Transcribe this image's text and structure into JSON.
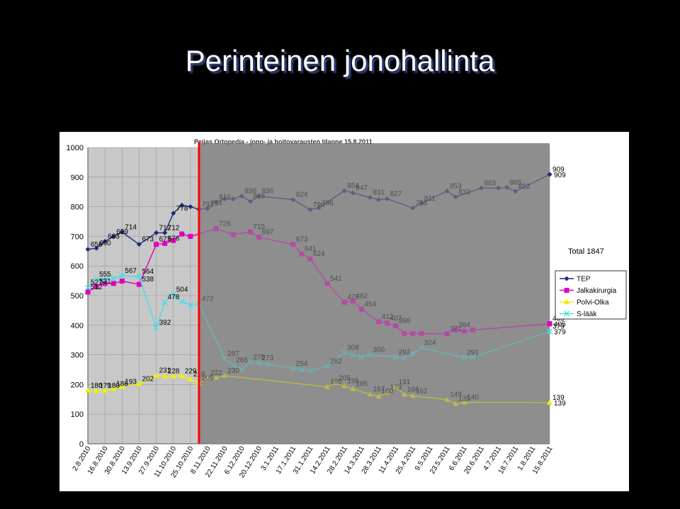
{
  "slide": {
    "title": "Perinteinen jonohallinta"
  },
  "chart_data": {
    "type": "line",
    "title": "Peijas Ortopedia - jono- ja hoitovarausten tilanne 15.8.2011",
    "ylim": [
      0,
      1000
    ],
    "yticks": [
      0,
      100,
      200,
      300,
      400,
      500,
      600,
      700,
      800,
      900,
      1000
    ],
    "grid": true,
    "legend_position": "right",
    "total_label": "Total 1847",
    "x_dates": [
      "2.8.2010",
      "9.8.2010",
      "16.8.2010",
      "23.8.2010",
      "30.8.2010",
      "6.9.2010",
      "13.9.2010",
      "20.9.2010",
      "27.9.2010",
      "4.10.2010",
      "11.10.2010",
      "18.10.2010",
      "25.10.2010",
      "1.11.2010",
      "8.11.2010",
      "15.11.2010",
      "22.11.2010",
      "29.11.2010",
      "6.12.2010",
      "13.12.2010",
      "20.12.2010",
      "27.12.2010",
      "3.1.2011",
      "10.1.2011",
      "17.1.2011",
      "24.1.2011",
      "31.1.2011",
      "7.2.2011",
      "14.2.2011",
      "21.2.2011",
      "28.2.2011",
      "7.3.2011",
      "14.3.2011",
      "21.3.2011",
      "28.3.2011",
      "4.4.2011",
      "11.4.2011",
      "18.4.2011",
      "25.4.2011",
      "2.5.2011",
      "9.5.2011",
      "16.5.2011",
      "23.5.2011",
      "30.5.2011",
      "6.6.2011",
      "13.6.2011",
      "20.6.2011",
      "27.6.2011",
      "4.7.2011",
      "11.7.2011",
      "18.7.2011",
      "25.7.2011",
      "1.8.2011",
      "8.8.2011",
      "15.8.2011"
    ],
    "x_tick_labels": [
      "2.8.2010",
      "16.8.2010",
      "30.8.2010",
      "13.9.2010",
      "27.9.2010",
      "11.10.2010",
      "25.10.2010",
      "8.11.2010",
      "22.11.2010",
      "6.12.2010",
      "20.12.2010",
      "3.1.2011",
      "17.1.2011",
      "31.1.2011",
      "14.2.2011",
      "28.2.2011",
      "14.3.2011",
      "28.3.2011",
      "11.4.2011",
      "25.4.2011",
      "9.5.2011",
      "23.5.2011",
      "6.6.2011",
      "20.6.2011",
      "4.7.2011",
      "18.7.2011",
      "1.8.2011",
      "15.8.2011"
    ],
    "series": [
      {
        "name": "TEP",
        "color": "#1f2a7a",
        "marker": "diamond",
        "labels_from_index": 0,
        "label_to_index": 10,
        "values": [
          656,
          660,
          683,
          699,
          714,
          null,
          673,
          null,
          712,
          712,
          778,
          805,
          800,
          791,
          794,
          816,
          826,
          826,
          836,
          818,
          836,
          null,
          null,
          null,
          824,
          null,
          790,
          796,
          null,
          null,
          854,
          847,
          null,
          831,
          824,
          827,
          null,
          null,
          796,
          811,
          null,
          null,
          853,
          833,
          null,
          null,
          863,
          null,
          863,
          865,
          852,
          null,
          null,
          null,
          909
        ]
      },
      {
        "name": "Jalkakirurgia",
        "color": "#e000c0",
        "marker": "square",
        "labels_from_index": 0,
        "label_to_index": 10,
        "values": [
          512,
          531,
          541,
          541,
          549,
          null,
          538,
          null,
          673,
          676,
          686,
          708,
          700,
          null,
          null,
          726,
          null,
          706,
          null,
          715,
          697,
          null,
          null,
          null,
          673,
          641,
          624,
          null,
          541,
          null,
          478,
          482,
          454,
          null,
          412,
          407,
          398,
          372,
          372,
          372,
          null,
          null,
          371,
          384,
          380,
          384,
          null,
          null,
          null,
          null,
          null,
          null,
          null,
          null,
          405
        ]
      },
      {
        "name": "Polvi-Olka",
        "color": "#f0f000",
        "marker": "triangle",
        "labels_from_index": 0,
        "label_to_index": 10,
        "values": [
          180,
          179,
          180,
          186,
          193,
          null,
          202,
          null,
          231,
          228,
          228,
          229,
          218,
          205,
          222,
          223,
          230,
          null,
          null,
          null,
          null,
          null,
          null,
          null,
          null,
          null,
          null,
          null,
          192,
          205,
          195,
          185,
          null,
          167,
          160,
          173,
          191,
          166,
          162,
          null,
          null,
          null,
          149,
          135,
          140,
          null,
          null,
          null,
          null,
          null,
          null,
          null,
          null,
          null,
          139
        ]
      },
      {
        "name": "S-lääk",
        "color": "#40e0e8",
        "marker": "x",
        "labels_from_index": 0,
        "label_to_index": 10,
        "values": [
          527,
          555,
          555,
          558,
          567,
          null,
          564,
          null,
          392,
          478,
          504,
          480,
          468,
          472,
          null,
          null,
          287,
          265,
          251,
          275,
          273,
          269,
          null,
          null,
          254,
          249,
          246,
          null,
          262,
          null,
          308,
          299,
          293,
          300,
          null,
          null,
          292,
          289,
          305,
          324,
          null,
          null,
          null,
          null,
          291,
          292,
          null,
          null,
          null,
          null,
          null,
          null,
          null,
          null,
          379
        ]
      }
    ],
    "data_labels": [
      {
        "series": 0,
        "i": 0,
        "text": "656"
      },
      {
        "series": 0,
        "i": 1,
        "text": "660"
      },
      {
        "series": 0,
        "i": 2,
        "text": "683"
      },
      {
        "series": 0,
        "i": 3,
        "text": "699"
      },
      {
        "series": 0,
        "i": 4,
        "text": "714"
      },
      {
        "series": 0,
        "i": 6,
        "text": "673"
      },
      {
        "series": 0,
        "i": 8,
        "text": "712"
      },
      {
        "series": 0,
        "i": 9,
        "text": "712"
      },
      {
        "series": 0,
        "i": 10,
        "text": "778"
      },
      {
        "series": 0,
        "i": 13,
        "text": "791"
      },
      {
        "series": 0,
        "i": 14,
        "text": "794"
      },
      {
        "series": 0,
        "i": 15,
        "text": "816"
      },
      {
        "series": 0,
        "i": 18,
        "text": "836"
      },
      {
        "series": 0,
        "i": 19,
        "text": "818"
      },
      {
        "series": 0,
        "i": 20,
        "text": "836"
      },
      {
        "series": 0,
        "i": 24,
        "text": "824"
      },
      {
        "series": 0,
        "i": 26,
        "text": "790"
      },
      {
        "series": 0,
        "i": 27,
        "text": "796"
      },
      {
        "series": 0,
        "i": 30,
        "text": "854"
      },
      {
        "series": 0,
        "i": 31,
        "text": "847"
      },
      {
        "series": 0,
        "i": 33,
        "text": "831"
      },
      {
        "series": 0,
        "i": 35,
        "text": "827"
      },
      {
        "series": 0,
        "i": 38,
        "text": "796"
      },
      {
        "series": 0,
        "i": 39,
        "text": "811"
      },
      {
        "series": 0,
        "i": 42,
        "text": "853"
      },
      {
        "series": 0,
        "i": 43,
        "text": "833"
      },
      {
        "series": 0,
        "i": 46,
        "text": "863"
      },
      {
        "series": 0,
        "i": 49,
        "text": "865"
      },
      {
        "series": 0,
        "i": 50,
        "text": "852"
      },
      {
        "series": 0,
        "i": 54,
        "text": "909"
      },
      {
        "series": 1,
        "i": 0,
        "text": "512"
      },
      {
        "series": 1,
        "i": 1,
        "text": "531"
      },
      {
        "series": 1,
        "i": 6,
        "text": "538"
      },
      {
        "series": 1,
        "i": 8,
        "text": "673"
      },
      {
        "series": 1,
        "i": 9,
        "text": "676"
      },
      {
        "series": 1,
        "i": 15,
        "text": "726"
      },
      {
        "series": 1,
        "i": 19,
        "text": "715"
      },
      {
        "series": 1,
        "i": 20,
        "text": "697"
      },
      {
        "series": 1,
        "i": 24,
        "text": "673"
      },
      {
        "series": 1,
        "i": 25,
        "text": "641"
      },
      {
        "series": 1,
        "i": 26,
        "text": "624"
      },
      {
        "series": 1,
        "i": 28,
        "text": "541"
      },
      {
        "series": 1,
        "i": 30,
        "text": "478"
      },
      {
        "series": 1,
        "i": 31,
        "text": "482"
      },
      {
        "series": 1,
        "i": 32,
        "text": "454"
      },
      {
        "series": 1,
        "i": 34,
        "text": "412"
      },
      {
        "series": 1,
        "i": 35,
        "text": "407"
      },
      {
        "series": 1,
        "i": 36,
        "text": "398"
      },
      {
        "series": 1,
        "i": 42,
        "text": "371"
      },
      {
        "series": 1,
        "i": 43,
        "text": "384"
      },
      {
        "series": 1,
        "i": 54,
        "text": "405"
      },
      {
        "series": 2,
        "i": 0,
        "text": "180"
      },
      {
        "series": 2,
        "i": 1,
        "text": "179"
      },
      {
        "series": 2,
        "i": 2,
        "text": "180"
      },
      {
        "series": 2,
        "i": 3,
        "text": "186"
      },
      {
        "series": 2,
        "i": 4,
        "text": "193"
      },
      {
        "series": 2,
        "i": 6,
        "text": "202"
      },
      {
        "series": 2,
        "i": 8,
        "text": "231"
      },
      {
        "series": 2,
        "i": 9,
        "text": "228"
      },
      {
        "series": 2,
        "i": 11,
        "text": "229"
      },
      {
        "series": 2,
        "i": 12,
        "text": "218"
      },
      {
        "series": 2,
        "i": 13,
        "text": "205"
      },
      {
        "series": 2,
        "i": 14,
        "text": "222"
      },
      {
        "series": 2,
        "i": 16,
        "text": "230"
      },
      {
        "series": 2,
        "i": 28,
        "text": "192"
      },
      {
        "series": 2,
        "i": 29,
        "text": "205"
      },
      {
        "series": 2,
        "i": 30,
        "text": "195"
      },
      {
        "series": 2,
        "i": 31,
        "text": "185"
      },
      {
        "series": 2,
        "i": 33,
        "text": "167"
      },
      {
        "series": 2,
        "i": 34,
        "text": "160"
      },
      {
        "series": 2,
        "i": 35,
        "text": "173"
      },
      {
        "series": 2,
        "i": 36,
        "text": "191"
      },
      {
        "series": 2,
        "i": 37,
        "text": "166"
      },
      {
        "series": 2,
        "i": 38,
        "text": "162"
      },
      {
        "series": 2,
        "i": 42,
        "text": "149"
      },
      {
        "series": 2,
        "i": 43,
        "text": "135"
      },
      {
        "series": 2,
        "i": 44,
        "text": "140"
      },
      {
        "series": 2,
        "i": 54,
        "text": "139"
      },
      {
        "series": 3,
        "i": 0,
        "text": "527"
      },
      {
        "series": 3,
        "i": 1,
        "text": "555"
      },
      {
        "series": 3,
        "i": 4,
        "text": "567"
      },
      {
        "series": 3,
        "i": 6,
        "text": "564"
      },
      {
        "series": 3,
        "i": 8,
        "text": "392"
      },
      {
        "series": 3,
        "i": 9,
        "text": "478"
      },
      {
        "series": 3,
        "i": 10,
        "text": "504"
      },
      {
        "series": 3,
        "i": 13,
        "text": "472"
      },
      {
        "series": 3,
        "i": 16,
        "text": "287"
      },
      {
        "series": 3,
        "i": 17,
        "text": "265"
      },
      {
        "series": 3,
        "i": 19,
        "text": "275"
      },
      {
        "series": 3,
        "i": 20,
        "text": "273"
      },
      {
        "series": 3,
        "i": 24,
        "text": "254"
      },
      {
        "series": 3,
        "i": 28,
        "text": "262"
      },
      {
        "series": 3,
        "i": 30,
        "text": "308"
      },
      {
        "series": 3,
        "i": 33,
        "text": "300"
      },
      {
        "series": 3,
        "i": 36,
        "text": "292"
      },
      {
        "series": 3,
        "i": 39,
        "text": "324"
      },
      {
        "series": 3,
        "i": 44,
        "text": "291"
      },
      {
        "series": 3,
        "i": 54,
        "text": "379"
      }
    ],
    "highlight": {
      "cutoff_date": "1.11.2010",
      "line_color": "#ff0000",
      "past_shade": "#c8c8c8",
      "future_shade": "#909090"
    }
  }
}
